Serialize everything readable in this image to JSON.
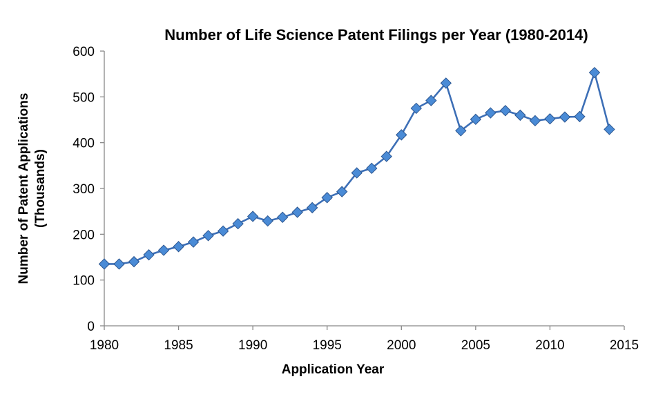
{
  "chart_data": {
    "type": "line",
    "title": "Number of Life Science Patent Filings per Year (1980-2014)",
    "xlabel": "Application Year",
    "ylabel_lines": [
      "Number of Patent Applications",
      "(Thousands)"
    ],
    "xlim": [
      1980,
      2015
    ],
    "ylim": [
      0,
      600
    ],
    "x_ticks": [
      "1980",
      "1985",
      "1990",
      "1995",
      "2000",
      "2005",
      "2010",
      "2015"
    ],
    "y_ticks": [
      "0",
      "100",
      "200",
      "300",
      "400",
      "500",
      "600"
    ],
    "grid": false,
    "legend": "none",
    "series": [
      {
        "color": "#3d6fb6",
        "marker_color": "#4a8bd6",
        "marker": "diamond",
        "x": [
          1980,
          1981,
          1982,
          1983,
          1984,
          1985,
          1986,
          1987,
          1988,
          1989,
          1990,
          1991,
          1992,
          1993,
          1994,
          1995,
          1996,
          1997,
          1998,
          1999,
          2000,
          2001,
          2002,
          2003,
          2004,
          2005,
          2006,
          2007,
          2008,
          2009,
          2010,
          2011,
          2012,
          2013,
          2014
        ],
        "y": [
          135,
          135,
          140,
          155,
          165,
          173,
          183,
          197,
          207,
          223,
          239,
          229,
          237,
          248,
          258,
          280,
          293,
          334,
          344,
          370,
          417,
          475,
          492,
          530,
          426,
          451,
          465,
          470,
          460,
          448,
          452,
          456,
          457,
          553,
          429
        ]
      }
    ]
  }
}
